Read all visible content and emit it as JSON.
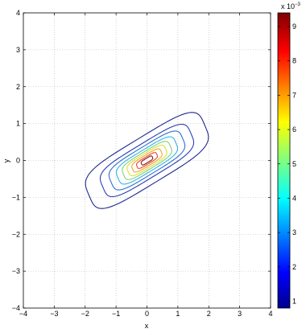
{
  "chart_data": {
    "type": "contour",
    "title": "",
    "xlabel": "x",
    "ylabel": "y",
    "xlim": [
      -4,
      4
    ],
    "ylim": [
      -4,
      4
    ],
    "xticks": [
      -4,
      -3,
      -2,
      -1,
      0,
      1,
      2,
      3,
      4
    ],
    "yticks": [
      -4,
      -3,
      -2,
      -1,
      0,
      1,
      2,
      3,
      4
    ],
    "xtick_labels": [
      "−4",
      "−3",
      "−2",
      "−1",
      "0",
      "1",
      "2",
      "3",
      "4"
    ],
    "ytick_labels": [
      "−4",
      "−3",
      "−2",
      "−1",
      "0",
      "1",
      "2",
      "3",
      "4"
    ],
    "grid": true,
    "colormap": "jet",
    "center": [
      0,
      0
    ],
    "orientation_deg": 27,
    "levels": [
      {
        "value": 1,
        "half_length": 2.1,
        "half_width": 0.65,
        "color": "#1f2a8c"
      },
      {
        "value": 2,
        "half_length": 1.6,
        "half_width": 0.48,
        "color": "#2a3fb4"
      },
      {
        "value": 3,
        "half_length": 1.3,
        "half_width": 0.39,
        "color": "#2b6fd6"
      },
      {
        "value": 4,
        "half_length": 1.05,
        "half_width": 0.31,
        "color": "#35b4e8"
      },
      {
        "value": 5,
        "half_length": 0.85,
        "half_width": 0.25,
        "color": "#7fd17a"
      },
      {
        "value": 6,
        "half_length": 0.68,
        "half_width": 0.2,
        "color": "#d6e23a"
      },
      {
        "value": 7,
        "half_length": 0.52,
        "half_width": 0.15,
        "color": "#f7a32a"
      },
      {
        "value": 8,
        "half_length": 0.36,
        "half_width": 0.1,
        "color": "#e8452a"
      },
      {
        "value": 9,
        "half_length": 0.2,
        "half_width": 0.06,
        "color": "#8b1010"
      }
    ],
    "colorbar": {
      "min": 0.8,
      "max": 9.4,
      "ticks": [
        1,
        2,
        3,
        4,
        5,
        6,
        7,
        8,
        9
      ],
      "tick_labels": [
        "1",
        "2",
        "3",
        "4",
        "5",
        "6",
        "7",
        "8",
        "9"
      ],
      "multiplier_label": "x 10",
      "multiplier_exponent": "−3"
    }
  }
}
